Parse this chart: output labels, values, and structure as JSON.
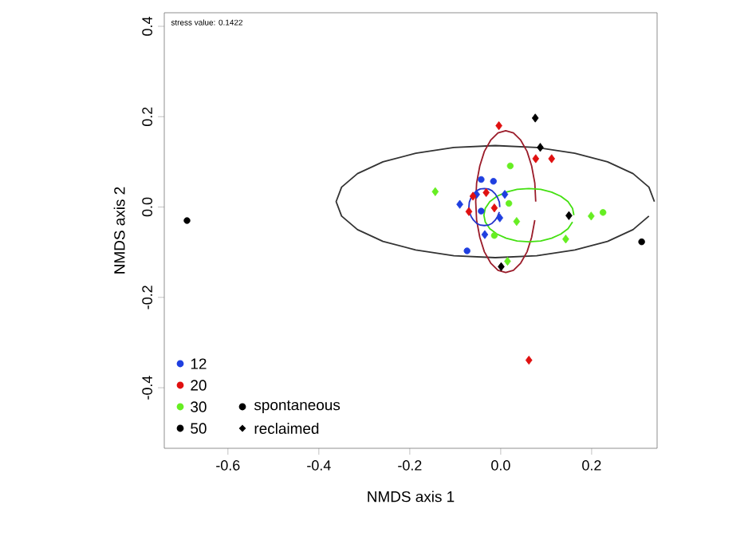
{
  "chart_data": {
    "type": "scatter",
    "xlabel": "NMDS axis 1",
    "ylabel": "NMDS axis 2",
    "xlim": [
      -0.74,
      0.344
    ],
    "ylim": [
      -0.534,
      0.43
    ],
    "xticks": [
      -0.6,
      -0.4,
      -0.2,
      {
        "value": 0,
        "label": "0.0"
      },
      0.2
    ],
    "yticks": [
      -0.4,
      -0.2,
      {
        "value": 0,
        "label": "0.0"
      },
      0.2,
      0.4
    ],
    "grid": false,
    "legend": "bottom left",
    "annotations": [
      "stress value: 0.1422",
      "spontaneous",
      "reclaimed"
    ],
    "series": [
      {
        "name": "12",
        "color": "#1f3fe0",
        "marker": "circle",
        "x": [
          -0.043,
          -0.016,
          -0.043,
          -0.074
        ],
        "values": [
          0.061,
          0.057,
          -0.009,
          -0.097
        ]
      },
      {
        "color": "#1f3fe0",
        "marker": "diamond",
        "x": [
          -0.09,
          0.009,
          -0.002,
          -0.035,
          -0.053
        ],
        "values": [
          0.006,
          0.028,
          -0.024,
          -0.061,
          0.028
        ]
      },
      {
        "name": "20",
        "color": "#e01010",
        "marker": "diamond",
        "x": [
          -0.004,
          0.077,
          0.112,
          0.062,
          -0.061,
          -0.07,
          -0.014,
          -0.032
        ],
        "values": [
          0.18,
          0.107,
          0.107,
          -0.339,
          0.024,
          -0.01,
          -0.002,
          0.032
        ]
      },
      {
        "name": "30",
        "color": "#66ee22",
        "marker": "circle",
        "x": [
          0.021,
          0.018,
          -0.014,
          0.225
        ],
        "values": [
          0.091,
          0.008,
          -0.063,
          -0.012
        ]
      },
      {
        "color": "#66ee22",
        "marker": "diamond",
        "x": [
          -0.144,
          0.035,
          0.199,
          0.143,
          0.015
        ],
        "values": [
          0.034,
          -0.032,
          -0.02,
          -0.071,
          -0.12
        ]
      },
      {
        "name": "50",
        "color": "#000000",
        "marker": "circle",
        "x": [
          0.31,
          -0.69
        ],
        "values": [
          -0.077,
          -0.03
        ]
      },
      {
        "color": "#000000",
        "marker": "diamond",
        "x": [
          0.076,
          0.087,
          0.15,
          0.001
        ],
        "values": [
          0.197,
          0.132,
          -0.019,
          -0.132
        ]
      },
      {
        "type": "line",
        "color": "#333333",
        "x": [
          0.338,
          0.326,
          0.291,
          0.235,
          0.163,
          0.079,
          -0.012,
          -0.103,
          -0.187,
          -0.259,
          -0.315,
          -0.35,
          -0.362,
          -0.35,
          -0.315,
          -0.259,
          -0.187,
          -0.103,
          -0.012,
          0.079,
          0.163,
          0.235,
          0.291,
          0.326
        ],
        "values": [
          0.012,
          0.044,
          0.074,
          0.1,
          0.119,
          0.132,
          0.136,
          0.132,
          0.119,
          0.1,
          0.074,
          0.044,
          0.012,
          -0.02,
          -0.05,
          -0.076,
          -0.095,
          -0.108,
          -0.112,
          -0.108,
          -0.095,
          -0.076,
          -0.05,
          -0.02
        ]
      },
      {
        "type": "line",
        "color": "#9b1c2a",
        "x": [
          0.077,
          0.075,
          0.068,
          0.058,
          0.044,
          0.028,
          0.011,
          -0.006,
          -0.022,
          -0.036,
          -0.046,
          -0.053,
          -0.055,
          -0.053,
          -0.046,
          -0.036,
          -0.022,
          -0.006,
          0.011,
          0.028,
          0.044,
          0.058,
          0.068,
          0.075
        ],
        "values": [
          0.012,
          0.053,
          0.091,
          0.123,
          0.148,
          0.164,
          0.169,
          0.164,
          0.148,
          0.123,
          0.091,
          0.053,
          0.012,
          -0.029,
          -0.067,
          -0.099,
          -0.124,
          -0.14,
          -0.145,
          -0.14,
          -0.124,
          -0.099,
          -0.067,
          -0.029
        ]
      },
      {
        "type": "line",
        "color": "#44e011",
        "x": [
          0.161,
          0.158,
          0.148,
          0.132,
          0.112,
          0.088,
          0.062,
          0.036,
          0.012,
          -0.008,
          -0.024,
          -0.034,
          -0.037,
          -0.034,
          -0.024,
          -0.008,
          0.012,
          0.036,
          0.062,
          0.088,
          0.112,
          0.132,
          0.148,
          0.158
        ],
        "values": [
          -0.018,
          -0.003,
          0.012,
          0.024,
          0.033,
          0.039,
          0.041,
          0.039,
          0.033,
          0.024,
          0.012,
          -0.003,
          -0.018,
          -0.033,
          -0.048,
          -0.06,
          -0.069,
          -0.075,
          -0.077,
          -0.075,
          -0.069,
          -0.06,
          -0.048,
          -0.033
        ]
      },
      {
        "type": "line",
        "color": "#2233cc",
        "x": [
          -0.002,
          -0.003,
          -0.007,
          -0.012,
          -0.019,
          -0.027,
          -0.036,
          -0.045,
          -0.053,
          -0.06,
          -0.065,
          -0.069,
          -0.07,
          -0.069,
          -0.065,
          -0.06,
          -0.053,
          -0.045,
          -0.036,
          -0.027,
          -0.019,
          -0.012,
          -0.007,
          -0.003
        ],
        "values": [
          0,
          0.011,
          0.021,
          0.029,
          0.036,
          0.04,
          0.041,
          0.04,
          0.036,
          0.029,
          0.021,
          0.011,
          0,
          -0.011,
          -0.021,
          -0.029,
          -0.036,
          -0.04,
          -0.041,
          -0.04,
          -0.036,
          -0.029,
          -0.021,
          -0.011
        ]
      }
    ]
  }
}
